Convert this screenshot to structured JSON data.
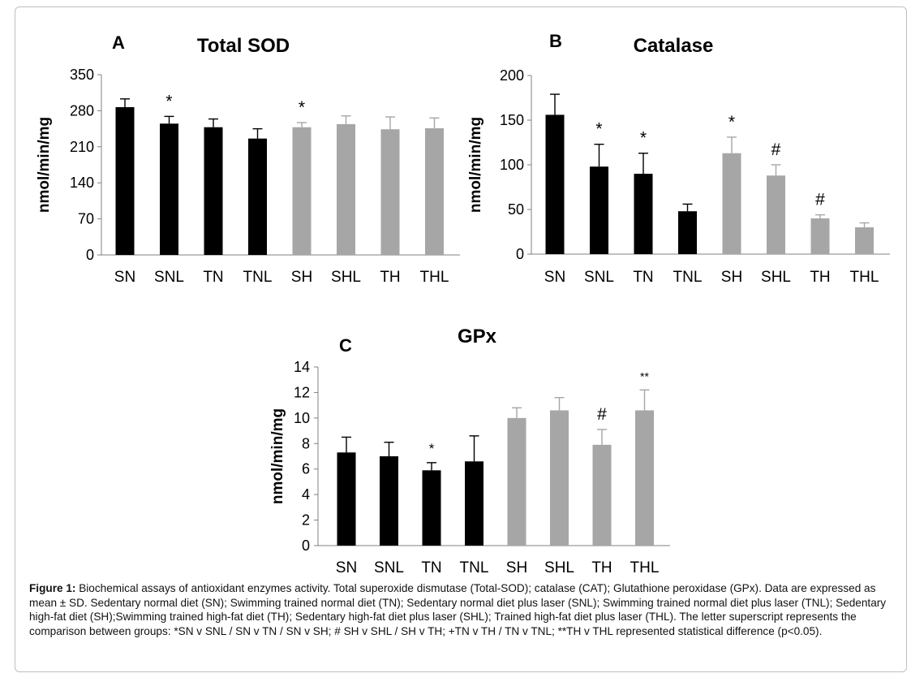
{
  "chart_data": [
    {
      "type": "bar",
      "panel": "A",
      "title": "Total SOD",
      "ylabel": "nmol/min/mg",
      "ylim": [
        0,
        350
      ],
      "yticks": [
        0,
        70,
        140,
        210,
        280,
        350
      ],
      "categories": [
        "SN",
        "SNL",
        "TN",
        "TNL",
        "SH",
        "SHL",
        "TH",
        "THL"
      ],
      "values": [
        287,
        255,
        248,
        226,
        248,
        254,
        244,
        246
      ],
      "errors": [
        16,
        14,
        16,
        19,
        9,
        16,
        24,
        20
      ],
      "bar_colors": [
        "#000000",
        "#000000",
        "#000000",
        "#000000",
        "#a6a6a6",
        "#a6a6a6",
        "#a6a6a6",
        "#a6a6a6"
      ],
      "annotations": [
        "",
        "*",
        "",
        "",
        "*",
        "",
        "",
        ""
      ]
    },
    {
      "type": "bar",
      "panel": "B",
      "title": "Catalase",
      "ylabel": "nmol/min/mg",
      "ylim": [
        0,
        200
      ],
      "yticks": [
        0,
        50,
        100,
        150,
        200
      ],
      "categories": [
        "SN",
        "SNL",
        "TN",
        "TNL",
        "SH",
        "SHL",
        "TH",
        "THL"
      ],
      "values": [
        156,
        98,
        90,
        48,
        113,
        88,
        40,
        30
      ],
      "errors": [
        23,
        25,
        23,
        8,
        18,
        12,
        4,
        5
      ],
      "bar_colors": [
        "#000000",
        "#000000",
        "#000000",
        "#000000",
        "#a6a6a6",
        "#a6a6a6",
        "#a6a6a6",
        "#a6a6a6"
      ],
      "annotations": [
        "",
        "*",
        "*",
        "",
        "*",
        "#",
        "#",
        ""
      ]
    },
    {
      "type": "bar",
      "panel": "C",
      "title": "GPx",
      "ylabel": "nmol/min/mg",
      "ylim": [
        0,
        14
      ],
      "yticks": [
        0,
        2,
        4,
        6,
        8,
        10,
        12,
        14
      ],
      "categories": [
        "SN",
        "SNL",
        "TN",
        "TNL",
        "SH",
        "SHL",
        "TH",
        "THL"
      ],
      "values": [
        7.3,
        7.0,
        5.9,
        6.6,
        10.0,
        10.6,
        7.9,
        10.6
      ],
      "errors": [
        1.2,
        1.1,
        0.6,
        2.0,
        0.8,
        1.0,
        1.2,
        1.6
      ],
      "bar_colors": [
        "#000000",
        "#000000",
        "#000000",
        "#000000",
        "#a6a6a6",
        "#a6a6a6",
        "#a6a6a6",
        "#a6a6a6"
      ],
      "annotations": [
        "",
        "",
        "*",
        "",
        "",
        "",
        "#",
        "**"
      ]
    }
  ],
  "caption": {
    "label": "Figure 1:",
    "text": "Biochemical assays of antioxidant enzymes activity. Total superoxide dismutase (Total-SOD); catalase (CAT); Glutathione peroxidase (GPx). Data are expressed as mean ± SD. Sedentary normal diet (SN); Swimming trained normal diet (TN); Sedentary normal diet plus laser (SNL); Swimming trained normal diet plus laser (TNL); Sedentary high-fat diet (SH);Swimming trained high-fat diet (TH); Sedentary high-fat diet plus laser (SHL); Trained high-fat diet plus laser (THL). The letter superscript represents the comparison between groups:  *SN v SNL / SN v TN / SN v SH; # SH v SHL / SH v TH; +TN v TH / TN v TNL; **TH v THL represented statistical difference (p<0.05)."
  }
}
